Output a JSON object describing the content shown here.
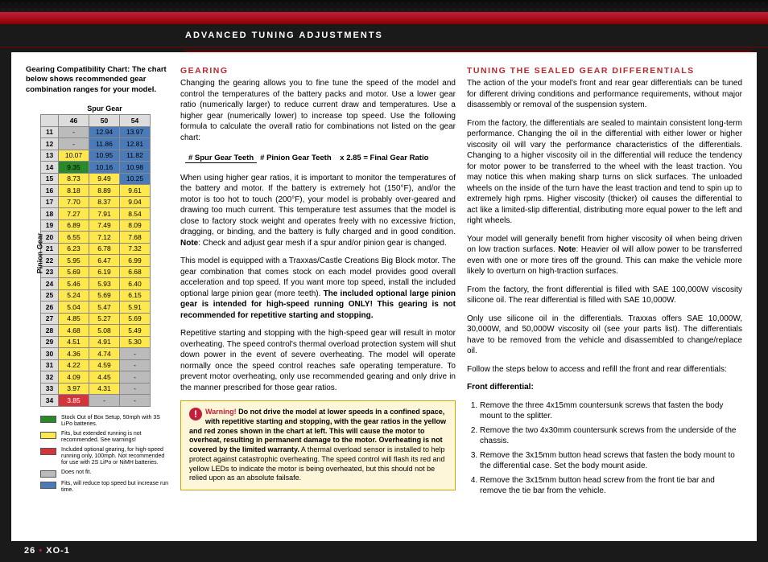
{
  "header": {
    "title": "ADVANCED TUNING ADJUSTMENTS"
  },
  "footer": {
    "page": "26",
    "model": "XO-1"
  },
  "chart": {
    "intro": "Gearing Compatibility Chart: The chart below shows recommended gear combination ranges for your model.",
    "spur_label": "Spur Gear",
    "pinion_label": "Pinion Gear",
    "cols": [
      "46",
      "50",
      "54"
    ],
    "legend": [
      {
        "color": "#2a8a2a",
        "txt": "Stock Out of Box Setup, 50mph with 3S LiPo batteries."
      },
      {
        "color": "#ffe84d",
        "txt": "Fits, but extended running is not recommended. See warnings!"
      },
      {
        "color": "#d4353a",
        "txt": "Included optional gearing, for high-speed running only, 100mph. Not recommended for use with 2S LiPo or NiMH batteries."
      },
      {
        "color": "#bbbbbb",
        "txt": "Does not fit."
      },
      {
        "color": "#4a7ab8",
        "txt": "Fits, will reduce top speed but increase run time."
      }
    ]
  },
  "rows": [
    {
      "p": "11",
      "c": [
        {
          "v": "-",
          "k": "n"
        },
        {
          "v": "12.94",
          "k": "b"
        },
        {
          "v": "13.97",
          "k": "b"
        }
      ]
    },
    {
      "p": "12",
      "c": [
        {
          "v": "-",
          "k": "n"
        },
        {
          "v": "11.86",
          "k": "b"
        },
        {
          "v": "12.81",
          "k": "b"
        }
      ]
    },
    {
      "p": "13",
      "c": [
        {
          "v": "10.07",
          "k": "y"
        },
        {
          "v": "10.95",
          "k": "b"
        },
        {
          "v": "11.82",
          "k": "b"
        }
      ]
    },
    {
      "p": "14",
      "c": [
        {
          "v": "9.35",
          "k": "g"
        },
        {
          "v": "10.16",
          "k": "b"
        },
        {
          "v": "10.98",
          "k": "b"
        }
      ]
    },
    {
      "p": "15",
      "c": [
        {
          "v": "8.73",
          "k": "y"
        },
        {
          "v": "9.49",
          "k": "y"
        },
        {
          "v": "10.25",
          "k": "b"
        }
      ]
    },
    {
      "p": "16",
      "c": [
        {
          "v": "8.18",
          "k": "y"
        },
        {
          "v": "8.89",
          "k": "y"
        },
        {
          "v": "9.61",
          "k": "y"
        }
      ]
    },
    {
      "p": "17",
      "c": [
        {
          "v": "7.70",
          "k": "y"
        },
        {
          "v": "8.37",
          "k": "y"
        },
        {
          "v": "9.04",
          "k": "y"
        }
      ]
    },
    {
      "p": "18",
      "c": [
        {
          "v": "7.27",
          "k": "y"
        },
        {
          "v": "7.91",
          "k": "y"
        },
        {
          "v": "8.54",
          "k": "y"
        }
      ]
    },
    {
      "p": "19",
      "c": [
        {
          "v": "6.89",
          "k": "y"
        },
        {
          "v": "7.49",
          "k": "y"
        },
        {
          "v": "8.09",
          "k": "y"
        }
      ]
    },
    {
      "p": "20",
      "c": [
        {
          "v": "6.55",
          "k": "y"
        },
        {
          "v": "7.12",
          "k": "y"
        },
        {
          "v": "7.68",
          "k": "y"
        }
      ]
    },
    {
      "p": "21",
      "c": [
        {
          "v": "6.23",
          "k": "y"
        },
        {
          "v": "6.78",
          "k": "y"
        },
        {
          "v": "7.32",
          "k": "y"
        }
      ]
    },
    {
      "p": "22",
      "c": [
        {
          "v": "5.95",
          "k": "y"
        },
        {
          "v": "6.47",
          "k": "y"
        },
        {
          "v": "6.99",
          "k": "y"
        }
      ]
    },
    {
      "p": "23",
      "c": [
        {
          "v": "5.69",
          "k": "y"
        },
        {
          "v": "6.19",
          "k": "y"
        },
        {
          "v": "6.68",
          "k": "y"
        }
      ]
    },
    {
      "p": "24",
      "c": [
        {
          "v": "5.46",
          "k": "y"
        },
        {
          "v": "5.93",
          "k": "y"
        },
        {
          "v": "6.40",
          "k": "y"
        }
      ]
    },
    {
      "p": "25",
      "c": [
        {
          "v": "5.24",
          "k": "y"
        },
        {
          "v": "5.69",
          "k": "y"
        },
        {
          "v": "6.15",
          "k": "y"
        }
      ]
    },
    {
      "p": "26",
      "c": [
        {
          "v": "5.04",
          "k": "y"
        },
        {
          "v": "5.47",
          "k": "y"
        },
        {
          "v": "5.91",
          "k": "y"
        }
      ]
    },
    {
      "p": "27",
      "c": [
        {
          "v": "4.85",
          "k": "y"
        },
        {
          "v": "5.27",
          "k": "y"
        },
        {
          "v": "5.69",
          "k": "y"
        }
      ]
    },
    {
      "p": "28",
      "c": [
        {
          "v": "4.68",
          "k": "y"
        },
        {
          "v": "5.08",
          "k": "y"
        },
        {
          "v": "5.49",
          "k": "y"
        }
      ]
    },
    {
      "p": "29",
      "c": [
        {
          "v": "4.51",
          "k": "y"
        },
        {
          "v": "4.91",
          "k": "y"
        },
        {
          "v": "5.30",
          "k": "y"
        }
      ]
    },
    {
      "p": "30",
      "c": [
        {
          "v": "4.36",
          "k": "y"
        },
        {
          "v": "4.74",
          "k": "y"
        },
        {
          "v": "-",
          "k": "n"
        }
      ]
    },
    {
      "p": "31",
      "c": [
        {
          "v": "4.22",
          "k": "y"
        },
        {
          "v": "4.59",
          "k": "y"
        },
        {
          "v": "-",
          "k": "n"
        }
      ]
    },
    {
      "p": "32",
      "c": [
        {
          "v": "4.09",
          "k": "y"
        },
        {
          "v": "4.45",
          "k": "y"
        },
        {
          "v": "-",
          "k": "n"
        }
      ]
    },
    {
      "p": "33",
      "c": [
        {
          "v": "3.97",
          "k": "y"
        },
        {
          "v": "4.31",
          "k": "y"
        },
        {
          "v": "-",
          "k": "n"
        }
      ]
    },
    {
      "p": "34",
      "c": [
        {
          "v": "3.85",
          "k": "r"
        },
        {
          "v": "-",
          "k": "n"
        },
        {
          "v": "-",
          "k": "n"
        }
      ]
    }
  ],
  "gearing": {
    "title": "GEARING",
    "p1": "Changing the gearing allows you to fine tune the speed of the model and control the temperatures of the battery packs and motor. Use a lower gear ratio (numerically larger) to reduce current draw and temperatures. Use a higher gear (numerically lower) to increase top speed. Use the following formula to calculate the overall ratio for combinations not listed on the gear chart:",
    "formula_top": "# Spur Gear Teeth",
    "formula_bot": "# Pinion Gear Teeth",
    "formula_eq": "x 2.85 = Final Gear Ratio",
    "p2a": "When using higher gear ratios, it is important to monitor the temperatures of the battery and motor. If the battery is extremely hot (150°F), and/or the motor is too hot to touch (200°F), your model is probably over-geared and drawing too much current. This temperature test assumes that the model is close to factory stock weight and operates freely with no excessive friction, dragging, or binding, and the battery is fully charged and in good condition. ",
    "p2n": "Note",
    "p2b": ": Check and adjust gear mesh if a spur and/or pinion gear is changed.",
    "p3a": "This model is equipped with a Traxxas/Castle Creations Big Block motor. The gear combination that comes stock on each model provides good overall acceleration and top speed. If you want more top speed, install the included optional large pinion gear (more teeth). ",
    "p3b": "The included optional large pinion gear is intended for high-speed running ONLY! This gearing is not recommended for repetitive starting and stopping.",
    "p4": "Repetitive starting and stopping with the high-speed gear will result in motor overheating. The speed control's thermal overload protection system will shut down power in the event of severe overheating. The model will operate normally once the speed control reaches safe operating temperature. To prevent motor overheating, only use recommended gearing and only drive in the manner prescribed for those gear ratios."
  },
  "warn": {
    "lead": "Warning!",
    "t1": " Do not drive the model at lower speeds in a confined space, with repetitive starting and stopping, with the gear ratios in the yellow and red zones shown in the chart at left. This will cause the motor to overheat, resulting in permanent damage to the motor. ",
    "t2": "Overheating is not covered by the limited warranty.",
    "t3": " A thermal overload sensor is installed to help protect against catastrophic overheating. The speed control will flash its red and yellow LEDs to indicate the motor is being overheated, but this should not be relied upon as an absolute failsafe."
  },
  "diff": {
    "title": "TUNING THE SEALED GEAR DIFFERENTIALS",
    "p1": "The action of the your model's front and rear gear differentials can be tuned for different driving conditions and performance requirements, without major disassembly or removal of the suspension system.",
    "p2": "From the factory, the differentials are sealed to maintain consistent long-term performance. Changing the oil in the differential with either lower or higher viscosity oil will vary the performance characteristics of the differentials. Changing to a higher viscosity oil in the differential will reduce the tendency for motor power to be transferred to the wheel with the least traction. You may notice this when making sharp turns on slick surfaces. The unloaded wheels on the inside of the turn have the least traction and tend to spin up to extremely high rpms. Higher viscosity (thicker) oil causes the differential to act like a limited-slip differential, distributing more equal power to the left and right wheels.",
    "p3a": "Your model will generally benefit from higher viscosity oil when being driven on low traction surfaces. ",
    "p3n": "Note",
    "p3b": ": Heavier oil will allow power to be transferred even with one or more tires off the ground. This can make the vehicle more likely to overturn on high-traction surfaces.",
    "p4": "From the factory, the front differential is filled with SAE 100,000W viscosity silicone oil.  The rear differential is filled with SAE 10,000W.",
    "p5": "Only use silicone oil in the differentials. Traxxas offers SAE 10,000W, 30,000W, and 50,000W viscosity oil (see your parts list). The differentials have to be removed from the vehicle and disassembled to change/replace oil.",
    "p6": "Follow the steps below to access and refill the front and rear differentials:",
    "front_title": "Front differential:",
    "steps": [
      "Remove the three 4x15mm countersunk screws that fasten the body mount to the splitter.",
      "Remove the two 4x30mm countersunk screws from the underside of the chassis.",
      "Remove the 3x15mm button head screws that fasten the body mount to the differential case.  Set the body mount aside.",
      "Remove the 3x15mm button head screw from the front tie bar and remove the tie bar from the vehicle."
    ]
  }
}
